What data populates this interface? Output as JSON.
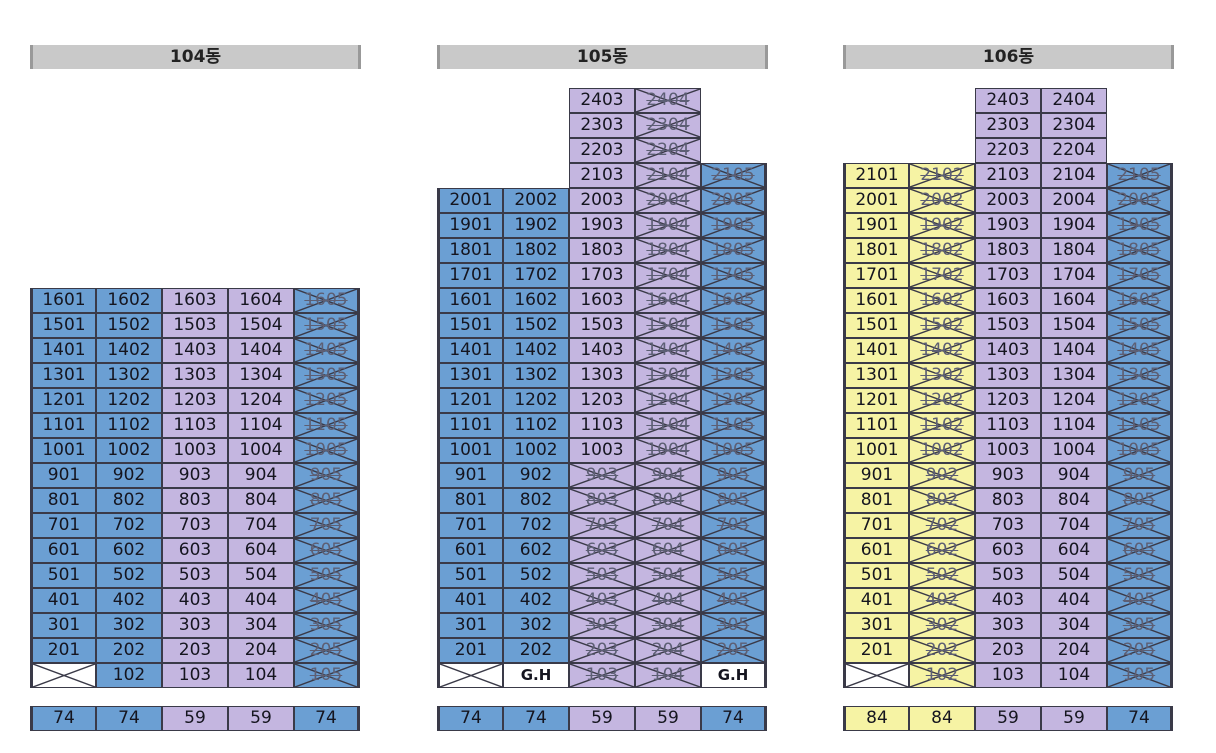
{
  "colors": {
    "type_a": "#6b9fd3",
    "type_b": "#c4b6e0",
    "type_c": "#f6f3a4",
    "guest": "#ffffff"
  },
  "buildings": [
    {
      "title": "104동",
      "columns": [
        {
          "unit": "01",
          "color": "blue",
          "top": 16,
          "crossed": [],
          "ground": {
            "kind": "x"
          }
        },
        {
          "unit": "02",
          "color": "blue",
          "top": 16,
          "crossed": [],
          "ground": {
            "kind": "unit",
            "label": "102"
          }
        },
        {
          "unit": "03",
          "color": "purple",
          "top": 16,
          "crossed": [],
          "ground": {
            "kind": "unit",
            "label": "103"
          }
        },
        {
          "unit": "04",
          "color": "purple",
          "top": 16,
          "crossed": [],
          "ground": {
            "kind": "unit",
            "label": "104"
          }
        },
        {
          "unit": "05",
          "color": "blue",
          "top": 16,
          "crossed": "all",
          "ground": {
            "kind": "unit",
            "label": "105",
            "crossed": true
          }
        }
      ],
      "sizes": [
        {
          "label": "74",
          "color": "blue"
        },
        {
          "label": "74",
          "color": "blue"
        },
        {
          "label": "59",
          "color": "purple"
        },
        {
          "label": "59",
          "color": "purple"
        },
        {
          "label": "74",
          "color": "blue"
        }
      ]
    },
    {
      "title": "105동",
      "columns": [
        {
          "unit": "01",
          "color": "blue",
          "top": 20,
          "crossed": [],
          "ground": {
            "kind": "x"
          }
        },
        {
          "unit": "02",
          "color": "blue",
          "top": 20,
          "crossed": [],
          "ground": {
            "kind": "gh",
            "label": "G.H"
          }
        },
        {
          "unit": "03",
          "color": "purple",
          "top": 24,
          "crossed": [
            2,
            3,
            4,
            5,
            6,
            7,
            8,
            9
          ],
          "ground": {
            "kind": "unit",
            "label": "103",
            "crossed": true
          }
        },
        {
          "unit": "04",
          "color": "purple",
          "top": 24,
          "crossed": "all",
          "ground": {
            "kind": "unit",
            "label": "104",
            "crossed": true
          }
        },
        {
          "unit": "05",
          "color": "blue",
          "top": 21,
          "crossed": "all",
          "ground": {
            "kind": "gh",
            "label": "G.H"
          }
        }
      ],
      "sizes": [
        {
          "label": "74",
          "color": "blue"
        },
        {
          "label": "74",
          "color": "blue"
        },
        {
          "label": "59",
          "color": "purple"
        },
        {
          "label": "59",
          "color": "purple"
        },
        {
          "label": "74",
          "color": "blue"
        }
      ]
    },
    {
      "title": "106동",
      "columns": [
        {
          "unit": "01",
          "color": "yellow",
          "top": 21,
          "crossed": [],
          "ground": {
            "kind": "x"
          }
        },
        {
          "unit": "02",
          "color": "yellow",
          "top": 21,
          "crossed": "all",
          "ground": {
            "kind": "unit",
            "label": "102",
            "crossed": true
          }
        },
        {
          "unit": "03",
          "color": "purple",
          "top": 24,
          "crossed": [],
          "ground": {
            "kind": "unit",
            "label": "103"
          }
        },
        {
          "unit": "04",
          "color": "purple",
          "top": 24,
          "crossed": [],
          "ground": {
            "kind": "unit",
            "label": "104"
          }
        },
        {
          "unit": "05",
          "color": "blue",
          "top": 21,
          "crossed": "all",
          "ground": {
            "kind": "unit",
            "label": "105",
            "crossed": true
          }
        }
      ],
      "sizes": [
        {
          "label": "84",
          "color": "yellow"
        },
        {
          "label": "84",
          "color": "yellow"
        },
        {
          "label": "59",
          "color": "purple"
        },
        {
          "label": "59",
          "color": "purple"
        },
        {
          "label": "74",
          "color": "blue"
        }
      ]
    }
  ]
}
